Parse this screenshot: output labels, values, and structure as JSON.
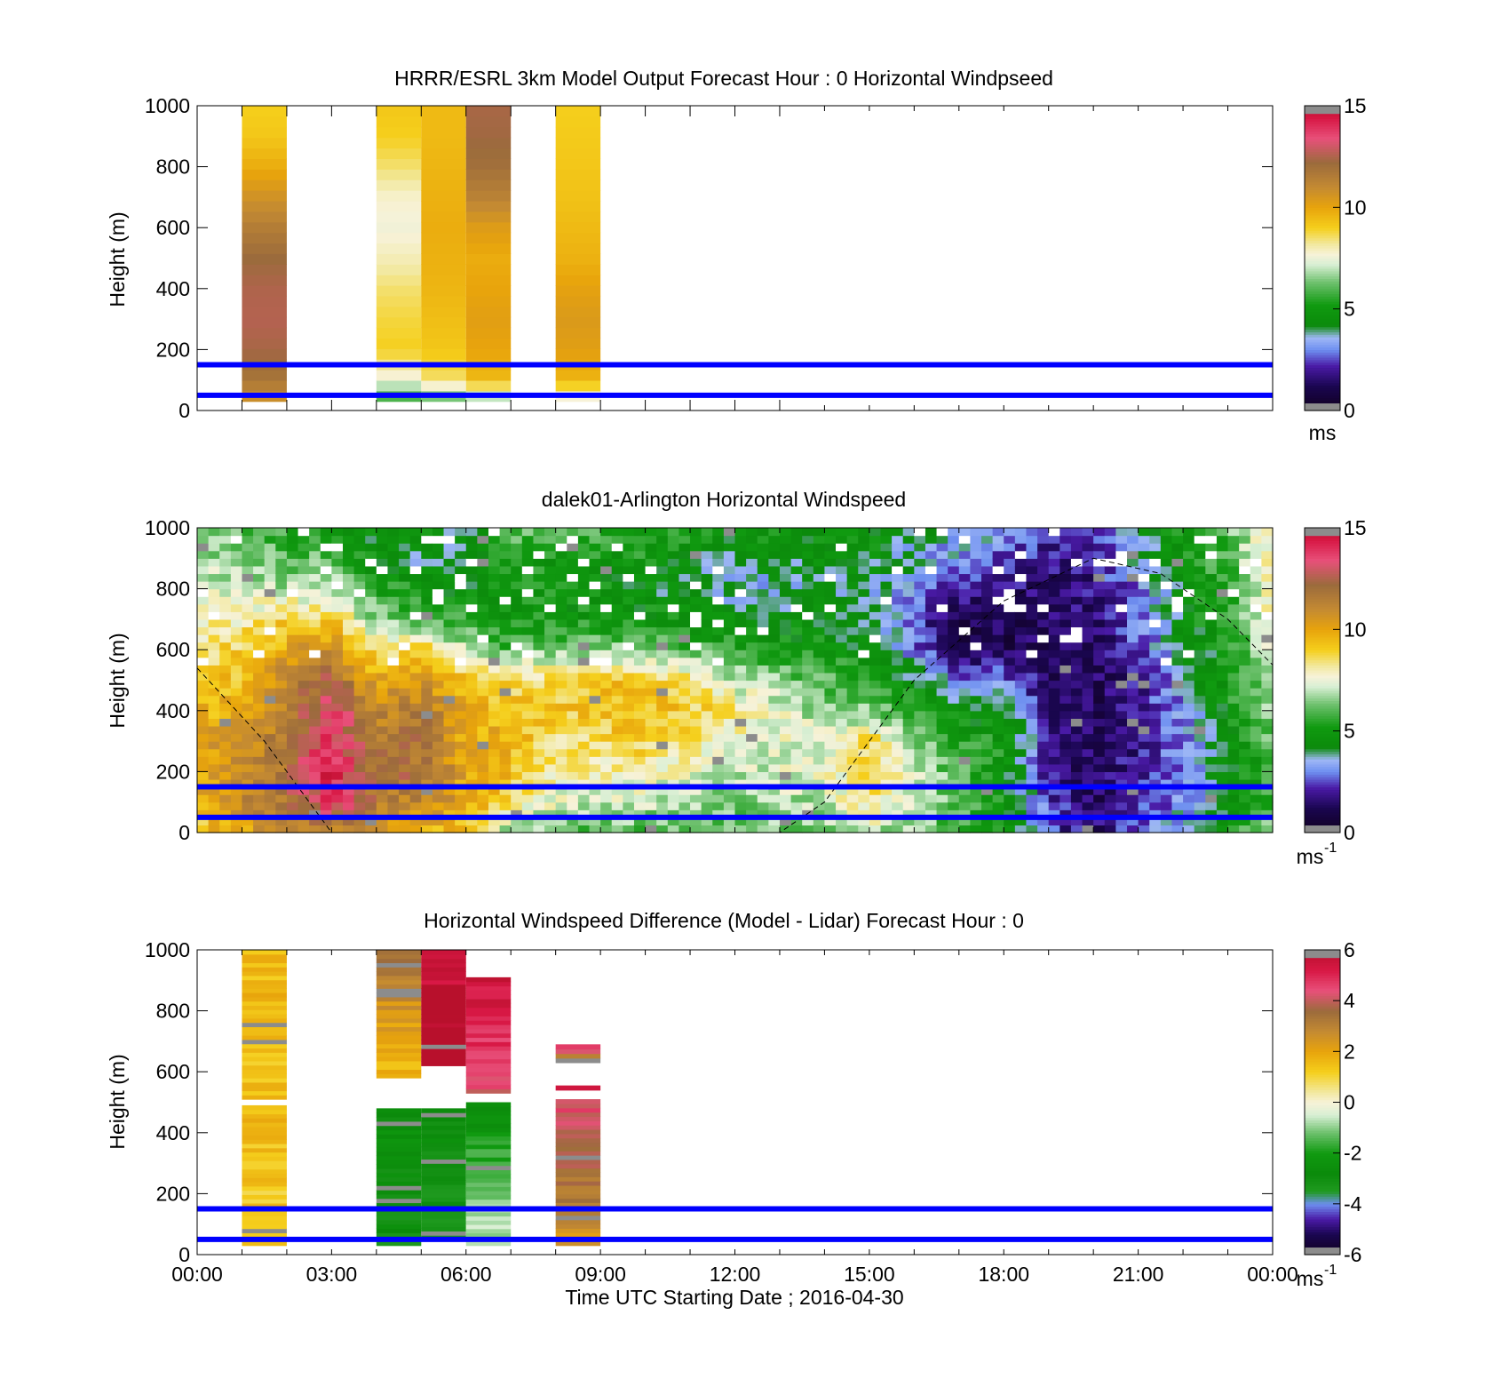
{
  "chart_data": [
    {
      "type": "heatmap",
      "title": "HRRR/ESRL 3km Model Output   Forecast Hour : 0 Horizontal Windpseed",
      "ylabel": "Height (m)",
      "xlabel": "",
      "xlim": [
        0,
        24
      ],
      "ylim": [
        0,
        1000
      ],
      "yticks": [
        "0",
        "200",
        "400",
        "600",
        "800",
        "1000"
      ],
      "xticks": [],
      "grid": false,
      "colorbar": {
        "ticks": [
          "0",
          "5",
          "10",
          "15"
        ],
        "range": [
          0,
          15
        ],
        "unit": "ms",
        "unit_sup": ""
      },
      "reference_lines_m": [
        50,
        150
      ],
      "columns": [
        {
          "t0": 1,
          "t1": 2,
          "hmin": 30,
          "profile": [
            10,
            11.8,
            12.4,
            12.6,
            12.5,
            12.2,
            11.5,
            10.7,
            9.8,
            9.2,
            9.0
          ]
        },
        {
          "t0": 4,
          "t1": 5,
          "hmin": 30,
          "profile": [
            4.5,
            7.5,
            9.0,
            8.8,
            8.5,
            8.0,
            7.6,
            7.8,
            8.5,
            9.0,
            9.2
          ]
        },
        {
          "t0": 5,
          "t1": 6,
          "hmin": 30,
          "profile": [
            4.5,
            8.5,
            9.2,
            9.4,
            9.6,
            9.7,
            9.8,
            9.7,
            9.6,
            9.5,
            9.5
          ]
        },
        {
          "t0": 6,
          "t1": 7,
          "hmin": 30,
          "profile": [
            4.8,
            9.5,
            10.0,
            10.2,
            10.0,
            9.8,
            10.3,
            11.3,
            12.0,
            12.3,
            12.4
          ]
        },
        {
          "t0": 8,
          "t1": 9,
          "hmin": 30,
          "profile": [
            6.0,
            9.6,
            10.2,
            10.4,
            10.1,
            9.7,
            9.5,
            9.3,
            9.2,
            9.1,
            9.0
          ]
        }
      ]
    },
    {
      "type": "heatmap",
      "title": "dalek01-Arlington  Horizontal Windspeed",
      "ylabel": "Height (m)",
      "xlabel": "",
      "xlim": [
        0,
        24
      ],
      "ylim": [
        0,
        1000
      ],
      "yticks": [
        "0",
        "200",
        "400",
        "600",
        "800",
        "1000"
      ],
      "xticks": [],
      "grid": false,
      "colorbar": {
        "ticks": [
          "0",
          "5",
          "10",
          "15"
        ],
        "range": [
          0,
          15
        ],
        "unit": "ms",
        "unit_sup": "-1"
      },
      "reference_lines_m": [
        50,
        150
      ],
      "boundary_layer_dashed": [
        [
          0,
          540
        ],
        [
          1.5,
          300
        ],
        [
          3,
          0
        ],
        [
          13,
          0
        ],
        [
          14,
          100
        ],
        [
          15,
          300
        ],
        [
          16,
          500
        ],
        [
          18,
          760
        ],
        [
          20,
          900
        ],
        [
          21.5,
          850
        ],
        [
          23,
          700
        ],
        [
          24,
          550
        ]
      ],
      "keypoints": [
        {
          "t": 0,
          "spd": [
            9,
            9.5,
            10,
            10,
            9.5,
            9,
            8.5,
            8,
            7.5,
            7,
            7
          ]
        },
        {
          "t": 1,
          "spd": [
            10,
            11,
            11,
            10.5,
            10,
            9.5,
            9,
            8,
            7,
            6.5,
            6
          ]
        },
        {
          "t": 2,
          "spd": [
            11,
            12,
            12,
            12,
            11.5,
            11,
            10,
            9,
            7,
            6,
            5.5
          ]
        },
        {
          "t": 3,
          "spd": [
            11,
            14,
            14.5,
            14,
            13.5,
            12.5,
            11,
            9,
            7,
            6,
            5.5
          ]
        },
        {
          "t": 4,
          "spd": [
            10,
            11.5,
            12,
            11.5,
            11,
            10,
            8.5,
            6.5,
            5.5,
            4.5,
            4.5
          ]
        },
        {
          "t": 5,
          "spd": [
            9.5,
            11,
            12,
            12,
            11.5,
            10.5,
            9,
            6,
            5,
            4,
            5
          ]
        },
        {
          "t": 6,
          "spd": [
            9,
            10,
            10,
            10,
            10,
            9.5,
            7,
            5.5,
            4.5,
            4,
            4
          ]
        },
        {
          "t": 7,
          "spd": [
            6.5,
            8.5,
            9.5,
            9.5,
            9.5,
            8.5,
            6,
            5,
            5,
            5.5,
            6
          ]
        },
        {
          "t": 8,
          "spd": [
            6,
            7.5,
            8,
            8.5,
            9,
            9,
            6.5,
            5,
            5,
            5,
            6
          ]
        },
        {
          "t": 10,
          "spd": [
            6,
            7,
            8,
            9,
            9.5,
            9.5,
            6.5,
            5,
            4.5,
            5,
            5.5
          ]
        },
        {
          "t": 12,
          "spd": [
            6,
            6.5,
            7,
            7.5,
            8.5,
            7,
            5.5,
            4.5,
            3.5,
            4,
            5
          ]
        },
        {
          "t": 14,
          "spd": [
            6.5,
            7,
            7.5,
            7.5,
            6.5,
            6,
            5,
            4.5,
            4,
            4.5,
            5
          ]
        },
        {
          "t": 15,
          "spd": [
            7,
            8.5,
            9,
            9,
            6.5,
            5.5,
            4.5,
            4,
            4,
            4.5,
            5
          ]
        },
        {
          "t": 16,
          "spd": [
            6.5,
            7,
            7,
            6.5,
            5.5,
            4.5,
            3,
            2.5,
            3,
            3.5,
            4
          ]
        },
        {
          "t": 17,
          "spd": [
            5.5,
            6,
            6,
            5.5,
            4.5,
            3,
            1,
            1.2,
            2,
            3,
            4
          ]
        },
        {
          "t": 18,
          "spd": [
            5,
            5,
            5,
            5,
            4.5,
            3,
            1.2,
            1.2,
            1.8,
            2.5,
            3.5
          ]
        },
        {
          "t": 19,
          "spd": [
            2.5,
            2.5,
            2,
            2,
            1.5,
            1.3,
            1.2,
            1.3,
            1.5,
            1.8,
            2
          ]
        },
        {
          "t": 20,
          "spd": [
            1.5,
            1.2,
            1.2,
            1.2,
            1.2,
            1.2,
            1.3,
            1.5,
            1.8,
            2,
            2
          ]
        },
        {
          "t": 21,
          "spd": [
            2.5,
            2,
            2,
            2,
            2,
            2,
            2.5,
            3,
            3,
            3.5,
            4
          ]
        },
        {
          "t": 22,
          "spd": [
            4,
            3,
            3,
            3,
            3,
            3.5,
            4,
            4.5,
            4.5,
            5,
            5
          ]
        },
        {
          "t": 23,
          "spd": [
            5,
            4.5,
            4.5,
            4.5,
            5,
            5,
            5,
            5.5,
            5.5,
            6,
            6
          ]
        },
        {
          "t": 24,
          "spd": [
            7,
            6,
            5.5,
            6,
            7,
            7,
            7.5,
            8,
            8,
            8,
            8
          ]
        }
      ]
    },
    {
      "type": "heatmap",
      "title": "Horizontal Windspeed Difference (Model - Lidar) Forecast Hour : 0",
      "ylabel": "Height (m)",
      "xlabel": "Time UTC  Starting Date ; 2016-04-30",
      "xlim": [
        0,
        24
      ],
      "ylim": [
        0,
        1000
      ],
      "yticks": [
        "0",
        "200",
        "400",
        "600",
        "800",
        "1000"
      ],
      "xticks": [
        "00:00",
        "03:00",
        "06:00",
        "09:00",
        "12:00",
        "15:00",
        "18:00",
        "21:00",
        "00:00"
      ],
      "grid": false,
      "colorbar": {
        "ticks": [
          "-6",
          "-4",
          "-2",
          "0",
          "2",
          "4",
          "6"
        ],
        "range": [
          -6,
          6
        ],
        "unit": "ms",
        "unit_sup": "-1"
      },
      "reference_lines_m": [
        50,
        150
      ],
      "segments": [
        {
          "t0": 1,
          "t1": 2,
          "h0": 30,
          "h1": 490,
          "v0": 1.2,
          "v1": 1.5
        },
        {
          "t0": 1,
          "t1": 2,
          "h0": 510,
          "h1": 1000,
          "v0": 1.4,
          "v1": 1.6
        },
        {
          "t0": 4,
          "t1": 5,
          "h0": 30,
          "h1": 480,
          "v0": -3.0,
          "v1": -2.6
        },
        {
          "t0": 4,
          "t1": 5,
          "h0": 580,
          "h1": 1000,
          "v0": 1.5,
          "v1": 3.3
        },
        {
          "t0": 5,
          "t1": 6,
          "h0": 50,
          "h1": 480,
          "v0": -3.2,
          "v1": -2.8
        },
        {
          "t0": 5,
          "t1": 6,
          "h0": 620,
          "h1": 1000,
          "v0": 6.5,
          "v1": 5.2
        },
        {
          "t0": 6,
          "t1": 7,
          "h0": 30,
          "h1": 500,
          "v0": -0.5,
          "v1": -2.6
        },
        {
          "t0": 6,
          "t1": 7,
          "h0": 530,
          "h1": 910,
          "v0": 4.2,
          "v1": 5.5
        },
        {
          "t0": 8,
          "t1": 9,
          "h0": 30,
          "h1": 510,
          "v0": 2.4,
          "v1": 4.5
        },
        {
          "t0": 8,
          "t1": 9,
          "h0": 540,
          "h1": 555,
          "v0": 5.5,
          "v1": 5.5
        },
        {
          "t0": 8,
          "t1": 9,
          "h0": 630,
          "h1": 690,
          "v0": 2.5,
          "v1": 5.0
        }
      ]
    }
  ]
}
